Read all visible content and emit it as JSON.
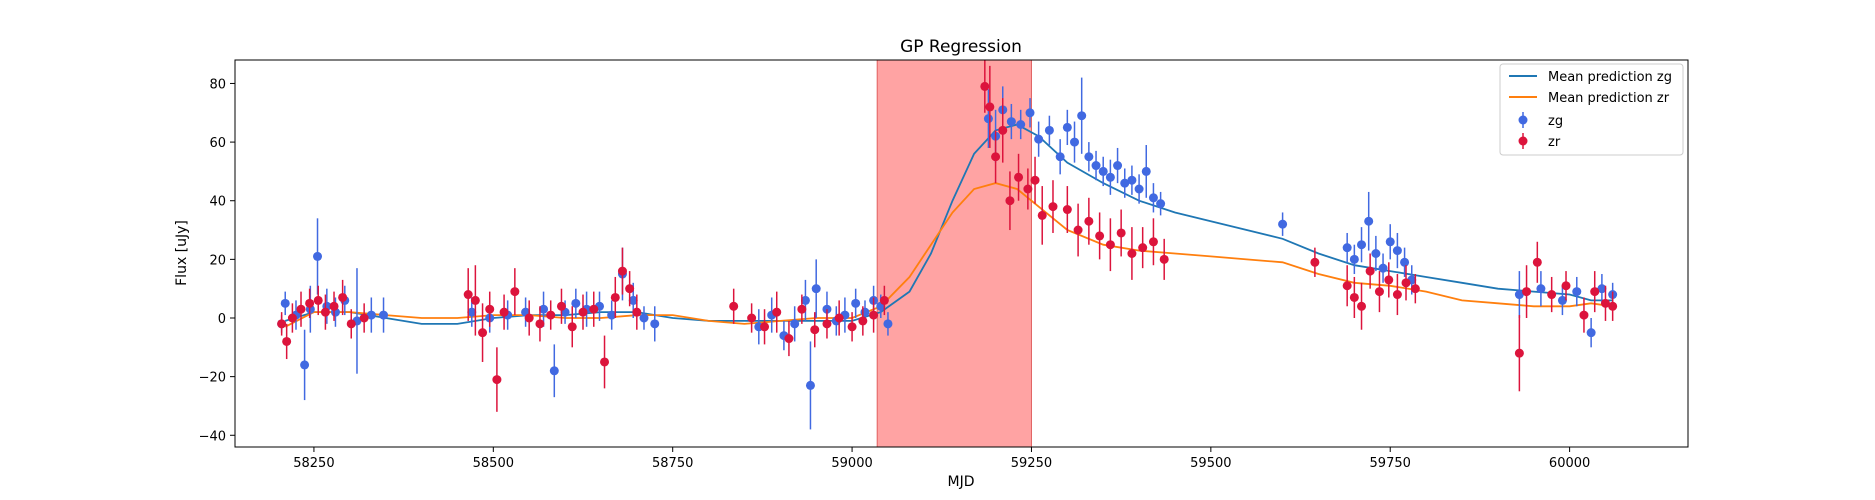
{
  "chart_data": {
    "type": "scatter",
    "title": "GP Regression",
    "xlabel": "MJD",
    "ylabel": "Flux [uJy]",
    "xlim": [
      58140,
      60165
    ],
    "ylim": [
      -44,
      88
    ],
    "xticks": [
      58250,
      58500,
      58750,
      59000,
      59250,
      59500,
      59750,
      60000
    ],
    "yticks": [
      -40,
      -20,
      0,
      20,
      40,
      60,
      80
    ],
    "grid": false,
    "legend_position": "top-right",
    "shaded_region": {
      "x_start": 59035,
      "x_end": 59250,
      "color": "#ff6666"
    },
    "series": [
      {
        "name": "Mean prediction zg",
        "kind": "line",
        "color": "#1f77b4",
        "x": [
          58210,
          58250,
          58300,
          58350,
          58400,
          58450,
          58500,
          58550,
          58600,
          58650,
          58700,
          58750,
          58800,
          58850,
          58900,
          58950,
          59000,
          59040,
          59080,
          59110,
          59140,
          59170,
          59200,
          59230,
          59260,
          59300,
          59350,
          59400,
          59450,
          59500,
          59550,
          59600,
          59650,
          59700,
          59750,
          59800,
          59850,
          59900,
          59950,
          60000,
          60030,
          60060
        ],
        "y": [
          -1,
          2,
          2,
          0,
          -2,
          -2,
          0,
          1,
          1,
          2,
          2,
          0,
          -1,
          -1,
          -1,
          -1,
          -1,
          2,
          9,
          22,
          40,
          56,
          64,
          66,
          62,
          53,
          46,
          40,
          36,
          33,
          30,
          27,
          22,
          18,
          16,
          14,
          12,
          10,
          9,
          8,
          6,
          6
        ]
      },
      {
        "name": "Mean prediction zr",
        "kind": "line",
        "color": "#ff7f0e",
        "x": [
          58210,
          58250,
          58300,
          58350,
          58400,
          58450,
          58500,
          58550,
          58600,
          58650,
          58700,
          58750,
          58800,
          58850,
          58900,
          58950,
          59000,
          59040,
          59080,
          59110,
          59140,
          59170,
          59200,
          59230,
          59260,
          59300,
          59350,
          59400,
          59450,
          59500,
          59550,
          59600,
          59650,
          59700,
          59750,
          59800,
          59850,
          59900,
          59950,
          60000,
          60030,
          60060
        ],
        "y": [
          -3,
          2,
          2,
          1,
          0,
          0,
          1,
          1,
          0,
          0,
          1,
          1,
          -1,
          -2,
          -1,
          0,
          0,
          4,
          14,
          25,
          36,
          44,
          46,
          44,
          38,
          30,
          25,
          23,
          22,
          21,
          20,
          19,
          15,
          12,
          11,
          9,
          6,
          5,
          4,
          4,
          5,
          4
        ]
      },
      {
        "name": "zg",
        "kind": "errorbar",
        "color": "#4169e1",
        "x": [
          58205,
          58210,
          58225,
          58237,
          58245,
          58255,
          58268,
          58280,
          58293,
          58310,
          58330,
          58347,
          58470,
          58495,
          58520,
          58545,
          58570,
          58585,
          58600,
          58615,
          58630,
          58648,
          58665,
          58680,
          58695,
          58710,
          58725,
          58870,
          58888,
          58905,
          58920,
          58935,
          58942,
          58950,
          58965,
          58978,
          58990,
          59005,
          59018,
          59030,
          59040,
          59050,
          59190,
          59200,
          59210,
          59222,
          59235,
          59248,
          59260,
          59275,
          59290,
          59300,
          59310,
          59320,
          59330,
          59340,
          59350,
          59360,
          59370,
          59380,
          59390,
          59400,
          59410,
          59420,
          59430,
          59600,
          59690,
          59700,
          59710,
          59720,
          59730,
          59740,
          59750,
          59760,
          59770,
          59780,
          59930,
          59960,
          59990,
          60010,
          60030,
          60045,
          60060
        ],
        "y": [
          -2,
          5,
          1,
          -16,
          3,
          21,
          4,
          2,
          6,
          -1,
          1,
          1,
          2,
          0,
          1,
          2,
          3,
          -18,
          2,
          5,
          3,
          4,
          1,
          15,
          6,
          0,
          -2,
          -3,
          1,
          -6,
          -2,
          6,
          -23,
          10,
          3,
          -1,
          1,
          5,
          2,
          6,
          4,
          -2,
          68,
          62,
          71,
          67,
          66,
          70,
          61,
          64,
          55,
          65,
          60,
          69,
          55,
          52,
          50,
          48,
          52,
          46,
          47,
          44,
          50,
          41,
          39,
          32,
          24,
          20,
          25,
          33,
          22,
          17,
          26,
          23,
          19,
          13,
          8,
          10,
          6,
          9,
          -5,
          10,
          8
        ],
        "yerr": [
          3,
          4,
          5,
          12,
          8,
          13,
          6,
          5,
          5,
          18,
          6,
          6,
          5,
          5,
          5,
          5,
          6,
          9,
          4,
          5,
          6,
          5,
          5,
          9,
          6,
          4,
          6,
          6,
          6,
          5,
          6,
          7,
          15,
          10,
          6,
          5,
          6,
          5,
          4,
          5,
          4,
          4,
          10,
          9,
          8,
          6,
          5,
          5,
          6,
          5,
          6,
          6,
          7,
          13,
          5,
          5,
          5,
          6,
          6,
          5,
          5,
          5,
          9,
          5,
          4,
          4,
          5,
          5,
          6,
          10,
          6,
          5,
          6,
          6,
          5,
          5,
          8,
          6,
          5,
          5,
          5,
          5,
          4
        ]
      },
      {
        "name": "zr",
        "kind": "errorbar",
        "color": "#dc143c",
        "x": [
          58205,
          58212,
          58220,
          58232,
          58244,
          58256,
          58266,
          58278,
          58290,
          58302,
          58320,
          58465,
          58475,
          58485,
          58495,
          58505,
          58515,
          58530,
          58550,
          58565,
          58580,
          58595,
          58610,
          58625,
          58640,
          58655,
          58670,
          58680,
          58690,
          58700,
          58835,
          58860,
          58878,
          58895,
          58912,
          58930,
          58948,
          58965,
          58982,
          59000,
          59015,
          59030,
          59045,
          59185,
          59192,
          59200,
          59210,
          59220,
          59232,
          59245,
          59255,
          59265,
          59280,
          59300,
          59315,
          59330,
          59345,
          59360,
          59375,
          59390,
          59405,
          59420,
          59435,
          59645,
          59690,
          59700,
          59710,
          59722,
          59735,
          59748,
          59760,
          59772,
          59785,
          59930,
          59940,
          59955,
          59975,
          59995,
          60020,
          60035,
          60050,
          60060
        ],
        "y": [
          -2,
          -8,
          0,
          3,
          5,
          6,
          2,
          4,
          7,
          -2,
          0,
          8,
          6,
          -5,
          3,
          -21,
          2,
          9,
          0,
          -2,
          1,
          4,
          -3,
          2,
          3,
          -15,
          7,
          16,
          10,
          2,
          4,
          0,
          -3,
          2,
          -7,
          3,
          -4,
          -2,
          0,
          -3,
          -1,
          1,
          6,
          79,
          72,
          55,
          64,
          40,
          48,
          44,
          47,
          35,
          38,
          37,
          30,
          33,
          28,
          25,
          29,
          22,
          24,
          26,
          20,
          19,
          11,
          7,
          4,
          16,
          9,
          13,
          8,
          12,
          10,
          -12,
          9,
          19,
          8,
          11,
          1,
          9,
          5,
          4
        ],
        "yerr": [
          4,
          6,
          5,
          6,
          5,
          5,
          6,
          5,
          6,
          5,
          5,
          9,
          12,
          10,
          6,
          11,
          6,
          8,
          6,
          6,
          5,
          6,
          7,
          6,
          6,
          9,
          7,
          8,
          6,
          6,
          6,
          5,
          6,
          7,
          6,
          5,
          6,
          5,
          6,
          5,
          5,
          6,
          5,
          9,
          14,
          9,
          11,
          10,
          8,
          7,
          8,
          10,
          9,
          8,
          9,
          8,
          8,
          9,
          8,
          9,
          7,
          8,
          7,
          5,
          7,
          7,
          8,
          6,
          7,
          6,
          7,
          6,
          5,
          13,
          9,
          7,
          6,
          5,
          6,
          7,
          6,
          5
        ]
      }
    ]
  }
}
